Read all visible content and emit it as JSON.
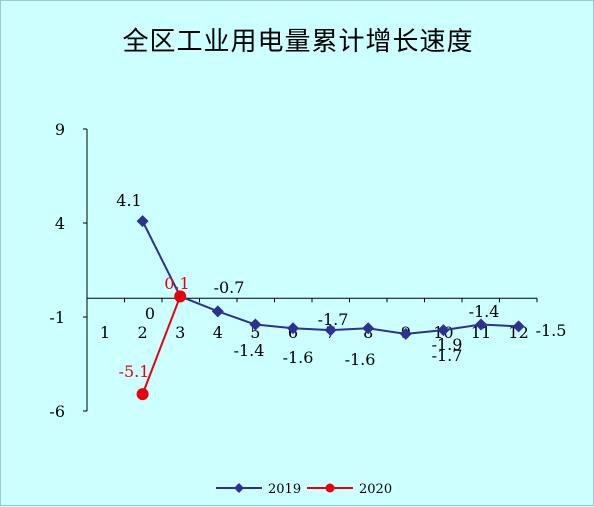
{
  "chart_data": {
    "type": "line",
    "title": "全区工业用电量累计增长速度",
    "xlabel": "",
    "ylabel": "",
    "ylim": [
      -6,
      9
    ],
    "yticks": [
      9,
      4,
      -1,
      -6
    ],
    "x": [
      1,
      2,
      3,
      4,
      5,
      6,
      7,
      8,
      9,
      10,
      11,
      12
    ],
    "xtick_labels": [
      "1",
      "2",
      "3",
      "4",
      "5",
      "6",
      "7",
      "8",
      "9",
      "10",
      "11",
      "12"
    ],
    "grid": false,
    "legend": "bottom-center",
    "series": [
      {
        "name": "2019",
        "color": "#2e3192",
        "marker": "diamond",
        "x": [
          2,
          3,
          4,
          5,
          6,
          7,
          8,
          9,
          10,
          11,
          12
        ],
        "values": [
          4.1,
          0.1,
          -0.7,
          -1.4,
          -1.6,
          -1.7,
          -1.6,
          -1.9,
          -1.7,
          -1.4,
          -1.5
        ],
        "labels": [
          {
            "x": 2,
            "text": "4.1"
          },
          {
            "x": 4,
            "text": "-0.7"
          },
          {
            "x": 5,
            "text": "-1.4"
          },
          {
            "x": 6,
            "text": "-1.6"
          },
          {
            "x": 7,
            "text": "-1.7"
          },
          {
            "x": 8,
            "text": "-1.6"
          },
          {
            "x": 10,
            "text": "-1.9"
          },
          {
            "x": 10,
            "text": "-1.7"
          },
          {
            "x": 11,
            "text": "-1.4"
          },
          {
            "x": 12,
            "text": "-1.5"
          }
        ]
      },
      {
        "name": "2020",
        "color": "#e8000b",
        "marker": "circle",
        "x": [
          2,
          3
        ],
        "values": [
          -5.1,
          0.1
        ],
        "labels": [
          {
            "x": 2,
            "text": "-5.1"
          },
          {
            "x": 3,
            "text": "0.1"
          }
        ]
      }
    ],
    "extra_labels": [
      {
        "text": "0",
        "note": "value label near category 2"
      }
    ]
  }
}
